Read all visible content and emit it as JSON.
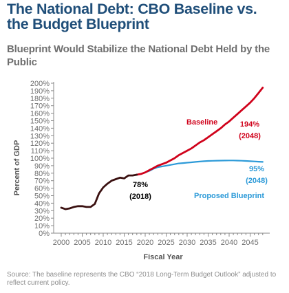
{
  "header": {
    "title": "The National Debt: CBO Baseline vs. the Budget Blueprint",
    "subtitle": "Blueprint Would Stabilize the National Debt Held by the Public"
  },
  "footer": {
    "source": "Source: The baseline represents the CBO “2018 Long-Term Budget Outlook” adjusted to reflect current policy."
  },
  "chart_data": {
    "type": "line",
    "title": "The National Debt: CBO Baseline vs. the Budget Blueprint",
    "subtitle": "Blueprint Would Stabilize the National Debt Held by the Public",
    "xlabel": "Fiscal Year",
    "ylabel": "Percent of GDP",
    "xlim": [
      2000,
      2048
    ],
    "ylim": [
      0,
      200
    ],
    "x_ticks": [
      2000,
      2005,
      2010,
      2015,
      2020,
      2025,
      2030,
      2035,
      2040,
      2045
    ],
    "y_ticks": [
      0,
      10,
      20,
      30,
      40,
      50,
      60,
      70,
      80,
      90,
      100,
      110,
      120,
      130,
      140,
      150,
      160,
      170,
      180,
      190,
      200
    ],
    "y_tick_labels": [
      "0%",
      "10%",
      "20%",
      "30%",
      "40%",
      "50%",
      "60%",
      "70%",
      "80%",
      "90%",
      "100%",
      "110%",
      "120%",
      "130%",
      "140%",
      "150%",
      "160%",
      "170%",
      "180%",
      "190%",
      "200%"
    ],
    "grid": false,
    "colors": {
      "historical": "#3a1010",
      "baseline": "#d0021b",
      "blueprint": "#2c9ad8",
      "axis": "#888888"
    },
    "series": [
      {
        "key": "historical",
        "values": [
          [
            2000,
            34
          ],
          [
            2001,
            32
          ],
          [
            2002,
            33
          ],
          [
            2003,
            35
          ],
          [
            2004,
            36
          ],
          [
            2005,
            36
          ],
          [
            2006,
            35
          ],
          [
            2007,
            35
          ],
          [
            2008,
            39
          ],
          [
            2009,
            53
          ],
          [
            2010,
            61
          ],
          [
            2011,
            66
          ],
          [
            2012,
            70
          ],
          [
            2013,
            72
          ],
          [
            2014,
            74
          ],
          [
            2015,
            73
          ],
          [
            2016,
            77
          ],
          [
            2017,
            77
          ],
          [
            2018,
            78
          ]
        ]
      },
      {
        "key": "baseline",
        "name": "Baseline",
        "values": [
          [
            2018,
            78
          ],
          [
            2019,
            79
          ],
          [
            2020,
            81
          ],
          [
            2021,
            84
          ],
          [
            2022,
            87
          ],
          [
            2023,
            90
          ],
          [
            2024,
            92
          ],
          [
            2025,
            94
          ],
          [
            2026,
            97
          ],
          [
            2027,
            100
          ],
          [
            2028,
            104
          ],
          [
            2029,
            107
          ],
          [
            2030,
            110
          ],
          [
            2031,
            113
          ],
          [
            2032,
            117
          ],
          [
            2033,
            121
          ],
          [
            2034,
            124
          ],
          [
            2035,
            128
          ],
          [
            2036,
            132
          ],
          [
            2037,
            136
          ],
          [
            2038,
            140
          ],
          [
            2039,
            145
          ],
          [
            2040,
            149
          ],
          [
            2041,
            154
          ],
          [
            2042,
            159
          ],
          [
            2043,
            164
          ],
          [
            2044,
            169
          ],
          [
            2045,
            174
          ],
          [
            2046,
            180
          ],
          [
            2047,
            187
          ],
          [
            2048,
            194
          ]
        ]
      },
      {
        "key": "blueprint",
        "name": "Proposed Blueprint",
        "values": [
          [
            2018,
            78
          ],
          [
            2019,
            79
          ],
          [
            2020,
            81
          ],
          [
            2021,
            83
          ],
          [
            2022,
            86
          ],
          [
            2023,
            88
          ],
          [
            2024,
            89
          ],
          [
            2025,
            90
          ],
          [
            2026,
            91
          ],
          [
            2027,
            92
          ],
          [
            2028,
            93
          ],
          [
            2029,
            93.5
          ],
          [
            2030,
            94
          ],
          [
            2031,
            94.5
          ],
          [
            2032,
            95
          ],
          [
            2033,
            95.5
          ],
          [
            2034,
            96
          ],
          [
            2035,
            96.3
          ],
          [
            2036,
            96.5
          ],
          [
            2037,
            96.7
          ],
          [
            2038,
            96.8
          ],
          [
            2039,
            96.9
          ],
          [
            2040,
            97
          ],
          [
            2041,
            97
          ],
          [
            2042,
            96.8
          ],
          [
            2043,
            96.6
          ],
          [
            2044,
            96.3
          ],
          [
            2045,
            96
          ],
          [
            2046,
            95.7
          ],
          [
            2047,
            95.3
          ],
          [
            2048,
            95
          ]
        ]
      }
    ],
    "annotations": [
      {
        "key": "baseline_label",
        "text": "Baseline",
        "color": "#d0021b"
      },
      {
        "key": "baseline_value",
        "text": "194%",
        "color": "#d0021b"
      },
      {
        "key": "baseline_year",
        "text": "(2048)",
        "color": "#d0021b"
      },
      {
        "key": "blueprint_value",
        "text": "95%",
        "color": "#2c9ad8"
      },
      {
        "key": "blueprint_year",
        "text": "(2048)",
        "color": "#2c9ad8"
      },
      {
        "key": "blueprint_label",
        "text": "Proposed Blueprint",
        "color": "#2c9ad8"
      },
      {
        "key": "current_value",
        "text": "78%",
        "color": "#000000"
      },
      {
        "key": "current_year",
        "text": "(2018)",
        "color": "#000000"
      }
    ]
  }
}
